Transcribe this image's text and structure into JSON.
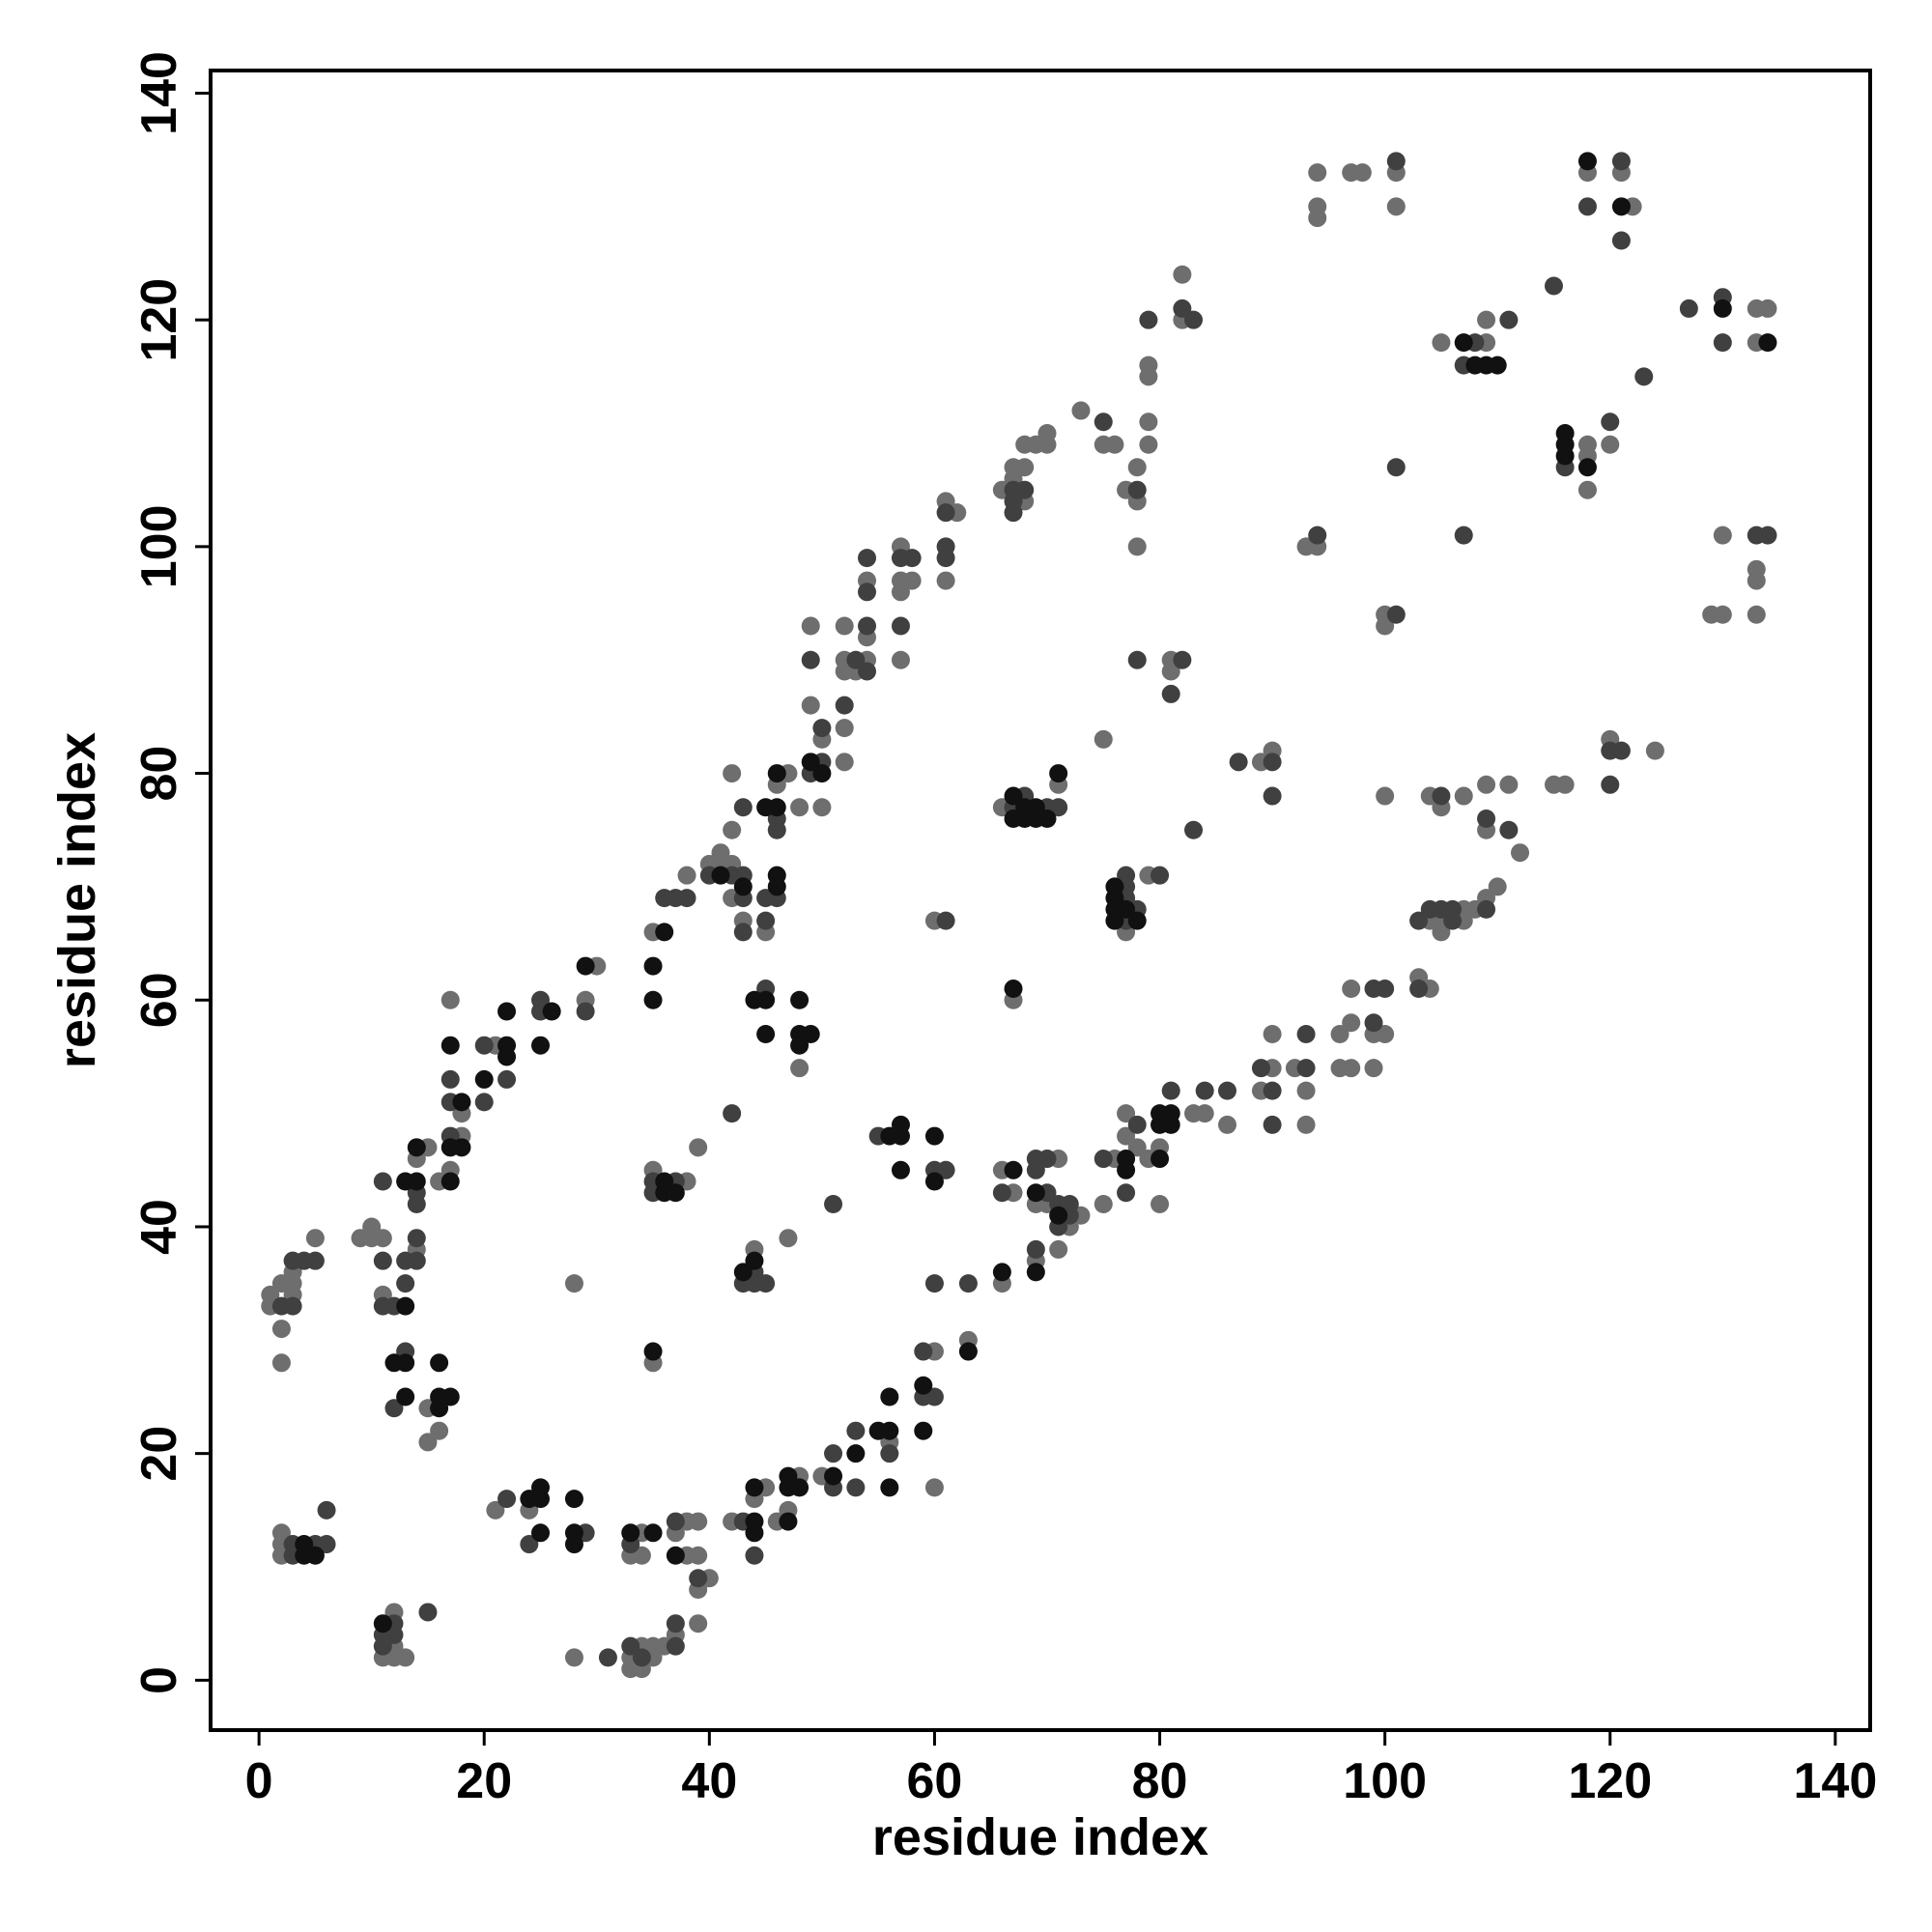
{
  "chart_data": {
    "type": "scatter",
    "xlabel": "residue index",
    "ylabel": "residue index",
    "xlim": [
      -4.3,
      143.1
    ],
    "ylim": [
      -4.4,
      142.0
    ],
    "xticks": [
      0,
      20,
      40,
      60,
      80,
      100,
      120,
      140
    ],
    "yticks": [
      0,
      20,
      40,
      60,
      80,
      100,
      120,
      140
    ],
    "series": [
      {
        "color": "#6e6e6e",
        "x": [
          1,
          1,
          2,
          3,
          3,
          5,
          2,
          2,
          3,
          9,
          10,
          10,
          11,
          11,
          14,
          14,
          15,
          15,
          16,
          15,
          17,
          18,
          18,
          17,
          16,
          21,
          30,
          29,
          2,
          2,
          2,
          11,
          12,
          12,
          12,
          13,
          21,
          24,
          28,
          28,
          33,
          34,
          34,
          33,
          33,
          34,
          34,
          35,
          35,
          36,
          37,
          37,
          38,
          38,
          39,
          39,
          39,
          40,
          39,
          35,
          35,
          38,
          39,
          35,
          38,
          40,
          41,
          41,
          42,
          43,
          42,
          42,
          42,
          45,
          46,
          47,
          48,
          48,
          49,
          49,
          50,
          50,
          42,
          44,
          45,
          46,
          47,
          48,
          50,
          44,
          47,
          56,
          52,
          52,
          52,
          53,
          54,
          54,
          54,
          52,
          52,
          57,
          57,
          57,
          58,
          57,
          60,
          60,
          60,
          61,
          62,
          61,
          63,
          66,
          67,
          67,
          68,
          68,
          68,
          69,
          70,
          70,
          66,
          71,
          66,
          67,
          69,
          71,
          70,
          72,
          73,
          71,
          69,
          66,
          67,
          73,
          75,
          76,
          75,
          76,
          75,
          77,
          77,
          78,
          79,
          80,
          80,
          83,
          84,
          86,
          77,
          79,
          77,
          78,
          78,
          78,
          79,
          79,
          79,
          79,
          81,
          81,
          82,
          82,
          89,
          90,
          89,
          90,
          90,
          92,
          93,
          93,
          94,
          94,
          94,
          97,
          98,
          93,
          94,
          96,
          96,
          97,
          97,
          97,
          99,
          99,
          100,
          101,
          101,
          100,
          100,
          100,
          103,
          104,
          104,
          105,
          105,
          107,
          107,
          108,
          104,
          105,
          107,
          109,
          109,
          109,
          110,
          111,
          112,
          105,
          109,
          109,
          115,
          116,
          118,
          118,
          118,
          120,
          120,
          124,
          118,
          121,
          122,
          129,
          130,
          130,
          133,
          134,
          133,
          133,
          133,
          133
        ],
        "values": [
          34,
          33,
          35,
          34,
          35,
          39,
          31,
          28,
          36,
          39,
          40,
          39,
          39,
          34,
          38,
          46,
          47,
          24,
          22,
          21,
          60,
          50,
          48,
          45,
          44,
          56,
          63,
          60,
          13,
          12,
          11,
          2,
          6,
          3,
          2,
          2,
          15,
          15,
          35,
          2,
          11,
          13,
          11,
          2,
          1,
          3,
          1,
          3,
          2,
          3,
          4,
          13,
          14,
          11,
          14,
          11,
          8,
          9,
          5,
          28,
          45,
          44,
          47,
          66,
          71,
          72,
          72,
          73,
          72,
          67,
          69,
          75,
          80,
          66,
          79,
          80,
          77,
          54,
          93,
          86,
          83,
          77,
          14,
          16,
          17,
          14,
          15,
          18,
          18,
          38,
          39,
          21,
          93,
          90,
          89,
          89,
          97,
          92,
          90,
          84,
          81,
          100,
          97,
          96,
          97,
          90,
          29,
          17,
          67,
          104,
          103,
          97,
          30,
          105,
          106,
          107,
          107,
          104,
          109,
          109,
          109,
          110,
          77,
          79,
          45,
          43,
          42,
          46,
          42,
          40,
          41,
          38,
          37,
          35,
          60,
          112,
          109,
          109,
          83,
          46,
          42,
          48,
          50,
          47,
          46,
          47,
          42,
          50,
          50,
          49,
          66,
          71,
          105,
          104,
          107,
          100,
          116,
          115,
          111,
          109,
          89,
          90,
          124,
          120,
          81,
          82,
          52,
          54,
          57,
          54,
          52,
          49,
          133,
          130,
          129,
          133,
          133,
          100,
          100,
          57,
          54,
          58,
          61,
          54,
          57,
          54,
          57,
          133,
          130,
          94,
          93,
          78,
          62,
          61,
          67,
          67,
          66,
          68,
          67,
          68,
          78,
          77,
          78,
          79,
          75,
          69,
          70,
          79,
          73,
          118,
          118,
          120,
          79,
          79,
          108,
          109,
          105,
          109,
          83,
          82,
          133,
          133,
          130,
          94,
          94,
          101,
          121,
          121,
          118,
          98,
          97,
          94
        ]
      },
      {
        "color": "#404040",
        "x": [
          2,
          3,
          4,
          3,
          5,
          11,
          11,
          12,
          13,
          13,
          14,
          14,
          11,
          14,
          14,
          13,
          12,
          17,
          17,
          17,
          20,
          20,
          22,
          25,
          25,
          29,
          3,
          3,
          5,
          6,
          6,
          11,
          11,
          12,
          15,
          12,
          22,
          24,
          29,
          31,
          33,
          33,
          34,
          37,
          37,
          37,
          39,
          35,
          35,
          37,
          36,
          37,
          38,
          40,
          42,
          43,
          43,
          43,
          43,
          45,
          45,
          45,
          46,
          46,
          46,
          49,
          50,
          49,
          50,
          42,
          43,
          44,
          44,
          44,
          43,
          45,
          51,
          51,
          53,
          53,
          56,
          52,
          53,
          54,
          54,
          54,
          54,
          51,
          57,
          58,
          57,
          55,
          59,
          59,
          60,
          60,
          61,
          60,
          61,
          61,
          61,
          61,
          63,
          67,
          67,
          67,
          68,
          67,
          68,
          70,
          71,
          66,
          69,
          69,
          70,
          70,
          71,
          71,
          72,
          72,
          69,
          75,
          75,
          77,
          78,
          81,
          84,
          86,
          77,
          77,
          77,
          77,
          78,
          80,
          78,
          79,
          78,
          81,
          82,
          82,
          83,
          83,
          87,
          90,
          90,
          89,
          90,
          90,
          93,
          93,
          94,
          99,
          99,
          100,
          101,
          101,
          101,
          103,
          103,
          104,
          105,
          106,
          106,
          105,
          109,
          109,
          111,
          107,
          108,
          111,
          107,
          115,
          116,
          120,
          120,
          121,
          120,
          118,
          121,
          121,
          123,
          127,
          130,
          130,
          133,
          134
        ],
        "values": [
          33,
          33,
          37,
          37,
          37,
          37,
          33,
          33,
          35,
          37,
          37,
          39,
          44,
          43,
          42,
          29,
          24,
          53,
          51,
          48,
          51,
          56,
          53,
          60,
          59,
          59,
          12,
          11,
          12,
          12,
          15,
          4,
          3,
          5,
          6,
          4,
          16,
          12,
          13,
          2,
          12,
          3,
          2,
          3,
          5,
          14,
          9,
          44,
          43,
          44,
          69,
          69,
          69,
          71,
          71,
          71,
          69,
          66,
          77,
          61,
          67,
          69,
          69,
          75,
          76,
          80,
          81,
          90,
          84,
          50,
          14,
          11,
          36,
          35,
          35,
          35,
          20,
          17,
          22,
          17,
          20,
          86,
          90,
          99,
          96,
          93,
          89,
          42,
          99,
          99,
          93,
          48,
          29,
          25,
          25,
          45,
          45,
          35,
          67,
          103,
          100,
          99,
          35,
          105,
          104,
          103,
          105,
          77,
          78,
          77,
          77,
          43,
          46,
          45,
          46,
          43,
          42,
          40,
          42,
          41,
          38,
          111,
          46,
          43,
          49,
          52,
          52,
          52,
          71,
          70,
          69,
          67,
          68,
          71,
          105,
          120,
          90,
          87,
          90,
          121,
          120,
          75,
          81,
          81,
          78,
          54,
          52,
          49,
          54,
          57,
          101,
          61,
          58,
          61,
          134,
          107,
          94,
          67,
          61,
          68,
          68,
          68,
          67,
          78,
          76,
          68,
          75,
          116,
          118,
          120,
          101,
          123,
          107,
          111,
          82,
          82,
          79,
          130,
          134,
          127,
          115,
          121,
          122,
          118,
          101,
          101
        ]
      },
      {
        "color": "#111111",
        "x": [
          13,
          13,
          14,
          14,
          12,
          13,
          13,
          16,
          16,
          16,
          17,
          17,
          18,
          17,
          18,
          17,
          20,
          22,
          22,
          22,
          26,
          25,
          29,
          4,
          4,
          5,
          11,
          24,
          25,
          25,
          25,
          28,
          28,
          28,
          33,
          35,
          37,
          35,
          36,
          36,
          37,
          36,
          35,
          35,
          41,
          43,
          44,
          45,
          45,
          46,
          46,
          45,
          46,
          46,
          48,
          48,
          48,
          49,
          49,
          50,
          44,
          44,
          44,
          47,
          47,
          47,
          48,
          43,
          44,
          51,
          53,
          55,
          56,
          56,
          56,
          56,
          57,
          57,
          57,
          59,
          59,
          60,
          60,
          63,
          67,
          67,
          68,
          68,
          69,
          69,
          70,
          71,
          67,
          69,
          71,
          69,
          66,
          67,
          77,
          77,
          80,
          80,
          80,
          81,
          81,
          76,
          76,
          76,
          76,
          77,
          78,
          107,
          108,
          109,
          110,
          116,
          116,
          116,
          118,
          118,
          121,
          130,
          134
        ],
        "values": [
          33,
          44,
          44,
          47,
          28,
          28,
          25,
          25,
          24,
          28,
          25,
          56,
          51,
          47,
          47,
          44,
          53,
          56,
          55,
          59,
          59,
          56,
          63,
          12,
          11,
          11,
          5,
          16,
          16,
          17,
          13,
          16,
          13,
          12,
          13,
          13,
          11,
          29,
          44,
          43,
          43,
          66,
          63,
          60,
          71,
          70,
          60,
          60,
          57,
          71,
          70,
          77,
          77,
          80,
          60,
          57,
          56,
          57,
          81,
          80,
          17,
          14,
          13,
          14,
          17,
          18,
          17,
          36,
          37,
          18,
          20,
          22,
          22,
          25,
          17,
          48,
          49,
          48,
          45,
          26,
          22,
          48,
          44,
          29,
          78,
          76,
          77,
          76,
          77,
          76,
          76,
          80,
          45,
          43,
          41,
          36,
          36,
          61,
          46,
          45,
          46,
          50,
          49,
          49,
          50,
          70,
          69,
          68,
          67,
          68,
          67,
          118,
          116,
          116,
          116,
          110,
          109,
          108,
          107,
          134,
          130,
          121,
          118
        ]
      }
    ]
  }
}
